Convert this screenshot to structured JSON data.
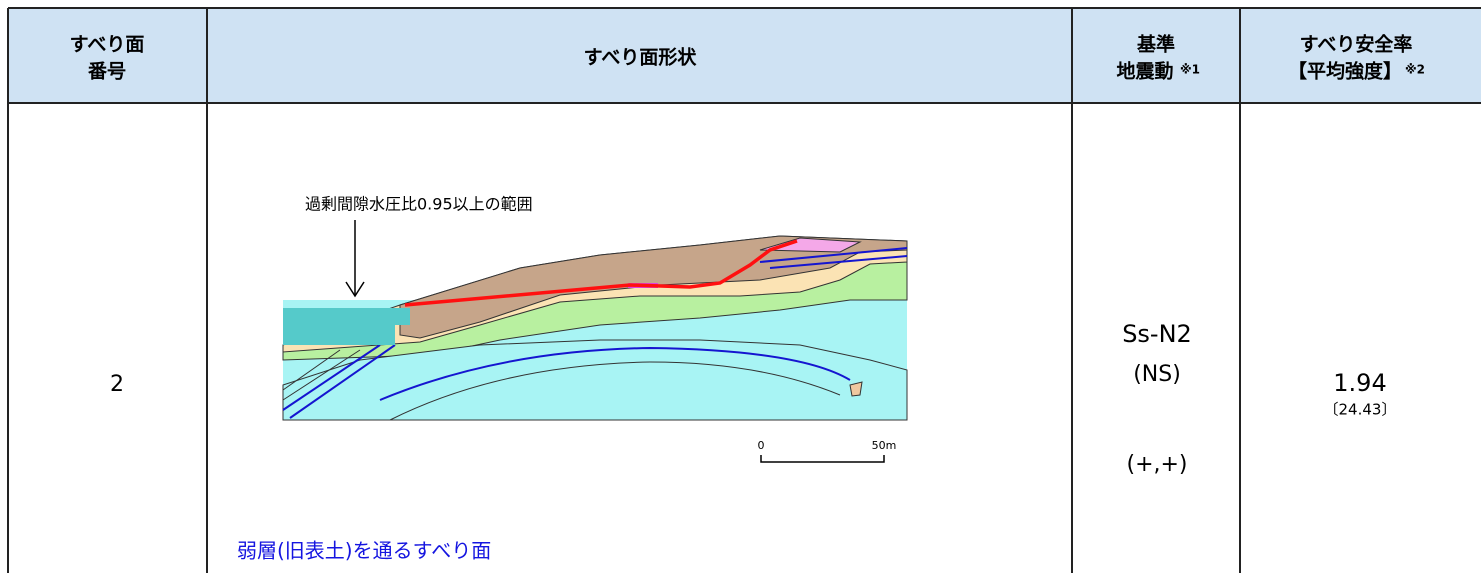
{
  "table": {
    "header": [
      {
        "lines": [
          "すべり面",
          "番号"
        ]
      },
      {
        "lines": [
          "すべり面形状"
        ]
      },
      {
        "lines": [
          "基準",
          "地震動"
        ],
        "note": "※1"
      },
      {
        "lines": [
          "すべり安全率",
          "【平均強度】"
        ],
        "note": "※2"
      }
    ],
    "rows": [
      {
        "number": "2",
        "figure": {
          "annotation": "過剰間隙水圧比0.95以上の範囲",
          "scale_start": "0",
          "scale_end": "50m"
        },
        "caption": "弱層(旧表土)を通るすべり面",
        "ground_motion": [
          "Ss-N2",
          "(NS)",
          "(+,+)"
        ],
        "safety_factor": "1.94",
        "average_strength": "〔24.43〕"
      }
    ]
  }
}
